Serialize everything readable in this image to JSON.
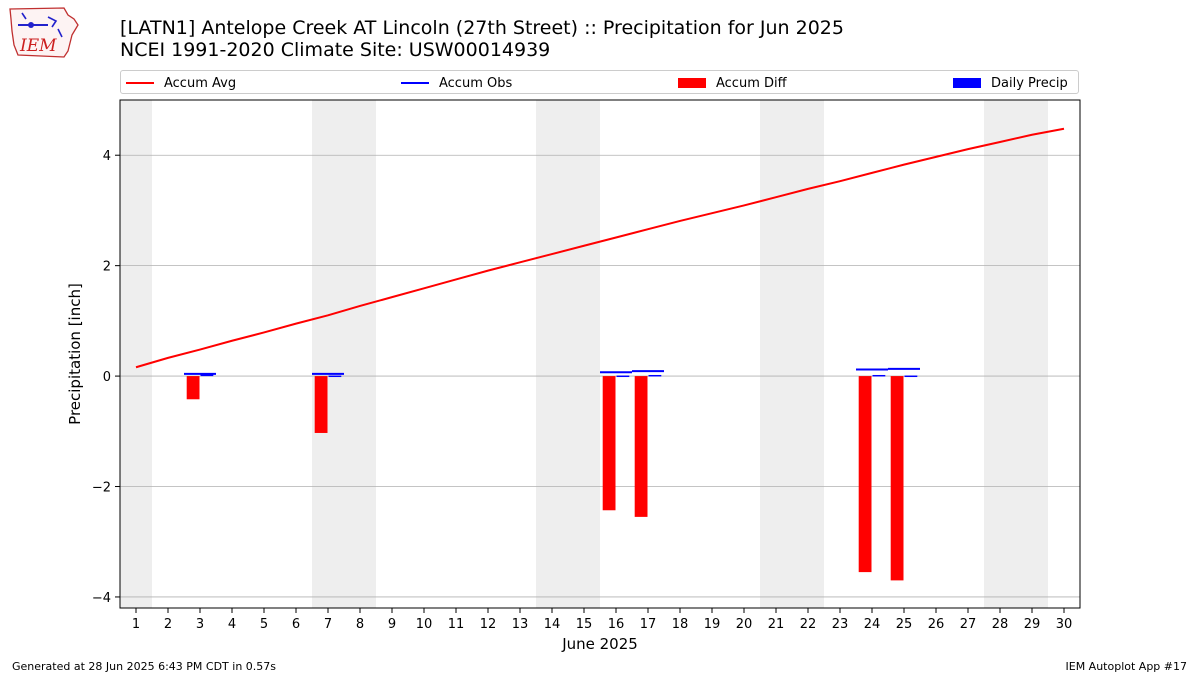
{
  "header": {
    "title_line1": "[LATN1] Antelope Creek  AT Lincoln (27th Street) :: Precipitation for Jun 2025",
    "title_line2": "NCEI 1991-2020 Climate Site: USW00014939"
  },
  "logo": {
    "text": "IEM",
    "icon": "iowa-state-outline-icon"
  },
  "footer": {
    "left": "Generated at 28 Jun 2025 6:43 PM CDT in 0.57s",
    "right": "IEM Autoplot App #17"
  },
  "colors": {
    "accum_avg": "#ff0000",
    "accum_obs": "#0000ff",
    "accum_diff": "#ff0000",
    "daily_precip": "#0000ff",
    "weekend_shade": "#eeeeee",
    "grid": "#b0b0b0"
  },
  "chart_data": {
    "type": "bar",
    "title": "[LATN1] Antelope Creek  AT Lincoln (27th Street) :: Precipitation for Jun 2025",
    "subtitle": "NCEI 1991-2020 Climate Site: USW00014939",
    "xlabel": "June 2025",
    "ylabel": "Precipitation [inch]",
    "xlim": [
      0.5,
      30.5
    ],
    "ylim": [
      -4.2,
      5.0
    ],
    "yticks": [
      -4,
      -2,
      0,
      2,
      4
    ],
    "yticklabels": [
      "−4",
      "−2",
      "0",
      "2",
      "4"
    ],
    "xticks": [
      1,
      2,
      3,
      4,
      5,
      6,
      7,
      8,
      9,
      10,
      11,
      12,
      13,
      14,
      15,
      16,
      17,
      18,
      19,
      20,
      21,
      22,
      23,
      24,
      25,
      26,
      27,
      28,
      29,
      30
    ],
    "grid": true,
    "legend": {
      "placement": "top",
      "entries": [
        "Accum Avg",
        "Accum Obs",
        "Accum Diff",
        "Daily Precip"
      ]
    },
    "weekend_days": [
      1,
      7,
      8,
      14,
      15,
      21,
      22,
      28,
      29
    ],
    "series": [
      {
        "name": "Accum Avg",
        "kind": "line",
        "x": [
          1,
          2,
          3,
          4,
          5,
          6,
          7,
          8,
          9,
          10,
          11,
          12,
          13,
          14,
          15,
          16,
          17,
          18,
          19,
          20,
          21,
          22,
          23,
          24,
          25,
          26,
          27,
          28,
          29,
          30
        ],
        "values": [
          0.16,
          0.33,
          0.48,
          0.64,
          0.79,
          0.95,
          1.1,
          1.27,
          1.43,
          1.59,
          1.75,
          1.91,
          2.06,
          2.21,
          2.36,
          2.51,
          2.66,
          2.81,
          2.95,
          3.09,
          3.24,
          3.39,
          3.53,
          3.68,
          3.83,
          3.97,
          4.11,
          4.24,
          4.37,
          4.48
        ]
      },
      {
        "name": "Accum Obs",
        "kind": "step",
        "x": [
          3,
          7,
          16,
          17,
          24,
          25
        ],
        "values": [
          0.04,
          0.04,
          0.07,
          0.09,
          0.12,
          0.13
        ]
      },
      {
        "name": "Accum Diff",
        "kind": "bar",
        "x": [
          3,
          7,
          16,
          17,
          24,
          25
        ],
        "values": [
          -0.42,
          -1.03,
          -2.43,
          -2.55,
          -3.55,
          -3.7
        ]
      },
      {
        "name": "Daily Precip",
        "kind": "bar",
        "x": [
          3,
          7,
          16,
          17,
          24,
          25
        ],
        "values": [
          0.04,
          0.01,
          0.01,
          0.02,
          0.02,
          0.01
        ]
      }
    ]
  }
}
